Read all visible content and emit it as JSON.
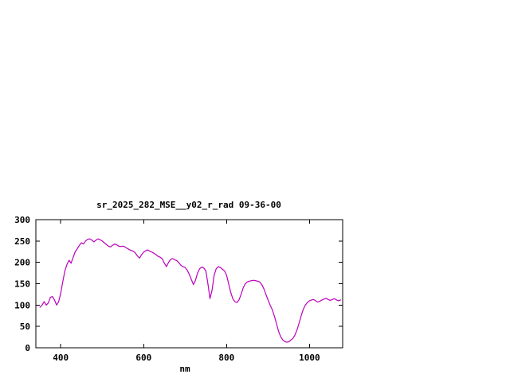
{
  "window": {
    "background_color": "#ffffff"
  },
  "chart_data": {
    "type": "line",
    "title": "sr_2025_282_MSE__y02_r_rad 09-36-00",
    "xlabel": "nm",
    "ylabel": "",
    "xlim": [
      340,
      1080
    ],
    "ylim": [
      0,
      300
    ],
    "xticks": [
      400,
      600,
      800,
      1000
    ],
    "yticks": [
      0,
      50,
      100,
      150,
      200,
      250,
      300
    ],
    "grid": false,
    "legend_position": "none",
    "line_color": "#bb00bb",
    "axis_color": "#000000",
    "series": [
      {
        "name": "sr_2025_282_MSE__y02_r_rad",
        "x_unit": "nm",
        "x_start": 350,
        "x_step": 5,
        "values": [
          95,
          100,
          108,
          100,
          105,
          118,
          120,
          112,
          100,
          108,
          128,
          155,
          180,
          195,
          205,
          198,
          212,
          225,
          232,
          240,
          246,
          243,
          250,
          254,
          255,
          252,
          248,
          252,
          255,
          253,
          250,
          246,
          242,
          238,
          236,
          240,
          243,
          241,
          238,
          237,
          238,
          236,
          233,
          230,
          228,
          226,
          222,
          215,
          210,
          218,
          224,
          227,
          229,
          226,
          224,
          221,
          218,
          214,
          212,
          208,
          198,
          190,
          200,
          207,
          209,
          206,
          204,
          199,
          193,
          190,
          188,
          182,
          172,
          160,
          148,
          158,
          175,
          185,
          189,
          187,
          180,
          150,
          115,
          135,
          170,
          185,
          190,
          188,
          184,
          180,
          170,
          150,
          130,
          115,
          108,
          106,
          112,
          125,
          140,
          150,
          154,
          156,
          157,
          158,
          157,
          156,
          154,
          148,
          138,
          125,
          112,
          100,
          90,
          75,
          58,
          40,
          27,
          19,
          15,
          13,
          14,
          18,
          22,
          30,
          42,
          58,
          75,
          90,
          100,
          106,
          110,
          112,
          113,
          110,
          107,
          109,
          112,
          114,
          116,
          113,
          111,
          113,
          115,
          112,
          110,
          112
        ]
      }
    ]
  }
}
